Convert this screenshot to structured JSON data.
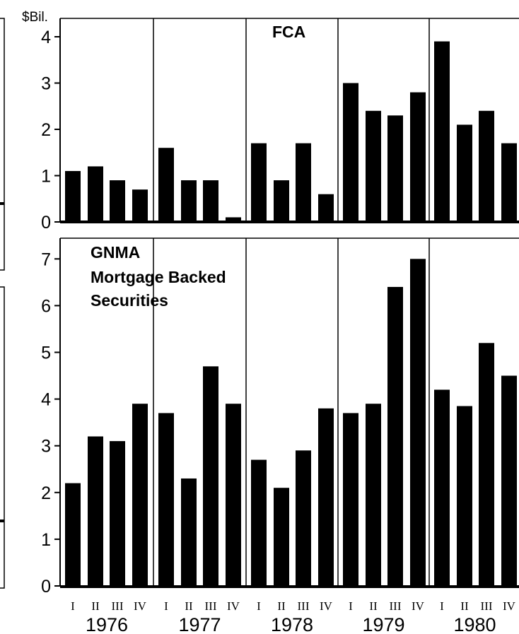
{
  "chart_data": [
    {
      "type": "bar",
      "title": "FCA",
      "ylabel": "$Bil.",
      "ylim": [
        0,
        4.4
      ],
      "yticks": [
        0,
        1,
        2,
        3,
        4
      ],
      "years": [
        "1976",
        "1977",
        "1978",
        "1979",
        "1980"
      ],
      "quarters": [
        "I",
        "II",
        "III",
        "IV"
      ],
      "values": [
        1.1,
        1.2,
        0.9,
        0.7,
        1.6,
        0.9,
        0.9,
        0.1,
        1.7,
        0.9,
        1.7,
        0.6,
        3.0,
        2.4,
        2.3,
        2.8,
        3.9,
        2.1,
        2.4,
        1.7
      ]
    },
    {
      "type": "bar",
      "title_lines": [
        "GNMA",
        "Mortgage Backed",
        "Securities"
      ],
      "ylim": [
        0,
        7.5
      ],
      "yticks": [
        0,
        1,
        2,
        3,
        4,
        5,
        6,
        7
      ],
      "years": [
        "1976",
        "1977",
        "1978",
        "1979",
        "1980"
      ],
      "quarters": [
        "I",
        "II",
        "III",
        "IV"
      ],
      "values": [
        2.2,
        3.2,
        3.1,
        3.9,
        3.7,
        2.3,
        4.7,
        3.9,
        2.7,
        2.1,
        2.9,
        3.8,
        3.7,
        3.9,
        6.4,
        7.0,
        4.2,
        3.85,
        5.2,
        4.5
      ]
    }
  ],
  "colors": {
    "bar": "#000000",
    "background": "#ffffff",
    "text": "#000000"
  }
}
